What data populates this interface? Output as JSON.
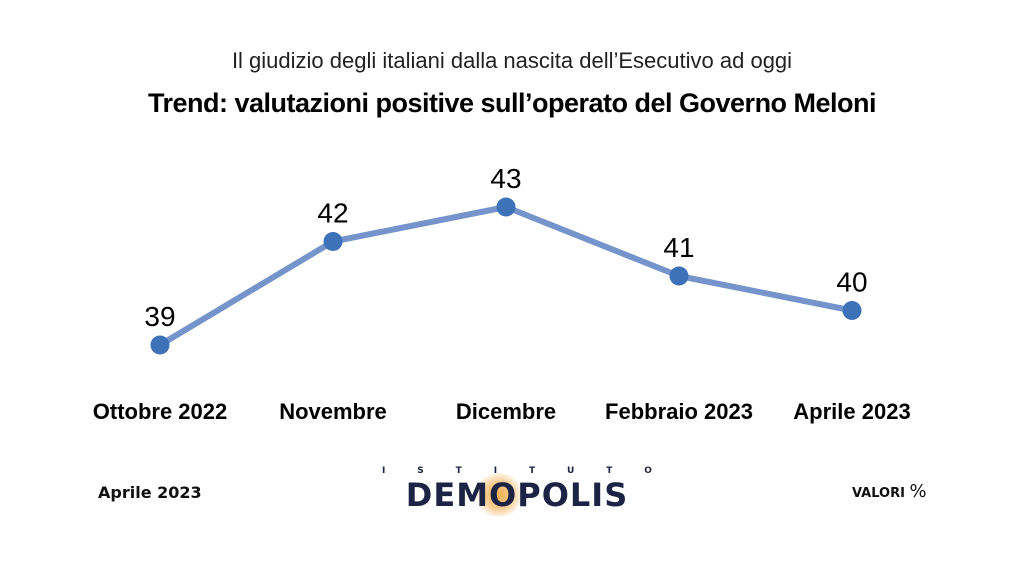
{
  "header": {
    "subtitle": "Il giudizio degli italiani dalla nascita dell’Esecutivo ad oggi",
    "title": "Trend: valutazioni positive sull’operato del Governo Meloni"
  },
  "chart_data": {
    "type": "line",
    "title": "Trend: valutazioni positive sull’operato del Governo Meloni",
    "subtitle": "Il giudizio degli italiani dalla nascita dell’Esecutivo ad oggi",
    "categories": [
      "Ottobre 2022",
      "Novembre",
      "Dicembre",
      "Febbraio 2023",
      "Aprile 2023"
    ],
    "values": [
      39,
      42,
      43,
      41,
      40
    ],
    "grid": false,
    "line_color": "#7594cc",
    "marker_color": "#3d72b8"
  },
  "footer": {
    "date": "Aprile 2023",
    "units_label": "VALORI",
    "units_symbol": "%",
    "logo_top": "ISTITUTO",
    "logo_main": "DEMOPOLIS"
  }
}
